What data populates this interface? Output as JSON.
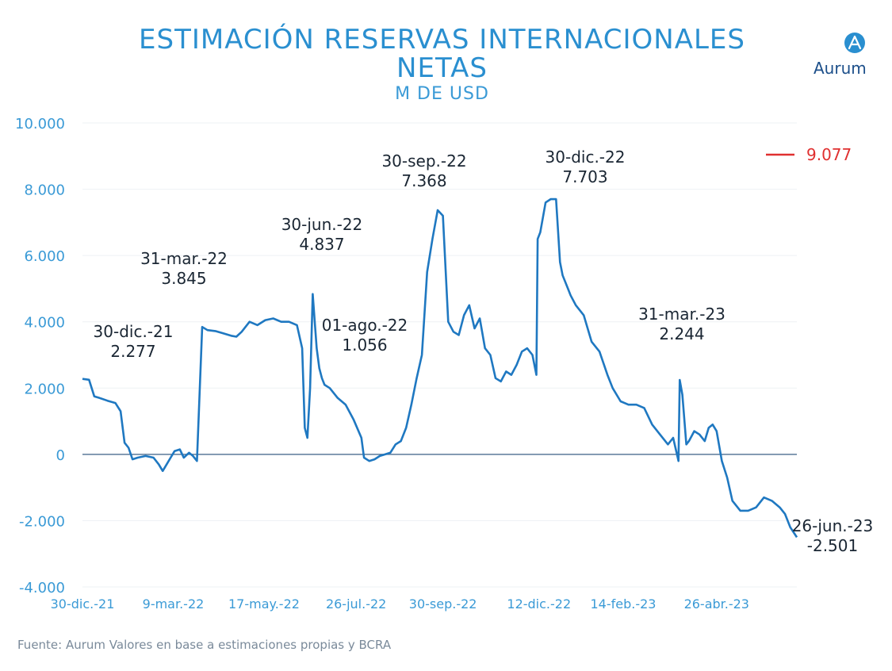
{
  "title_line1": "ESTIMACIÓN RESERVAS INTERNACIONALES",
  "title_line2": "NETAS",
  "subtitle": "M DE USD",
  "logo_text": "Aurum",
  "source": "Fuente: Aurum Valores en base a estimaciones propias y BCRA",
  "colors": {
    "line": "#1f78c1",
    "accent": "#e03030",
    "axis_text": "#3a9ad6",
    "zero": "#5b7a99"
  },
  "chart_data": {
    "type": "line",
    "ylim": [
      -4000,
      10000
    ],
    "yticks": [
      -4000,
      -2000,
      0,
      2000,
      4000,
      6000,
      8000,
      10000
    ],
    "ytick_labels": [
      "-4.000",
      "-2.000",
      "0",
      "2.000",
      "4.000",
      "6.000",
      "8.000",
      "10.000"
    ],
    "xlim": [
      "2021-12-30",
      "2023-06-26"
    ],
    "xticks": [
      "2021-12-30",
      "2022-03-09",
      "2022-05-17",
      "2022-07-26",
      "2022-09-30",
      "2022-12-12",
      "2023-02-14",
      "2023-04-26"
    ],
    "xtick_labels": [
      "30-dic.-21",
      "9-mar.-22",
      "17-may.-22",
      "26-jul.-22",
      "30-sep.-22",
      "12-dic.-22",
      "14-feb.-23",
      "26-abr.-23"
    ],
    "legend_value": "9.077",
    "annotations": [
      {
        "label": "30-dic.-21",
        "value": "2.277"
      },
      {
        "label": "31-mar.-22",
        "value": "3.845"
      },
      {
        "label": "30-jun.-22",
        "value": "4.837"
      },
      {
        "label": "01-ago.-22",
        "value": "1.056"
      },
      {
        "label": "30-sep.-22",
        "value": "7.368"
      },
      {
        "label": "30-dic.-22",
        "value": "7.703"
      },
      {
        "label": "31-mar.-23",
        "value": "2.244"
      },
      {
        "label": "26-jun.-23",
        "value": "-2.501"
      }
    ],
    "series": [
      {
        "x": [
          "2021-12-30",
          "2022-01-04",
          "2022-01-08",
          "2022-01-12",
          "2022-01-18",
          "2022-01-24",
          "2022-01-28",
          "2022-01-31",
          "2022-02-03",
          "2022-02-06",
          "2022-02-10",
          "2022-02-16",
          "2022-02-22",
          "2022-02-26",
          "2022-03-01",
          "2022-03-04",
          "2022-03-07",
          "2022-03-10",
          "2022-03-14",
          "2022-03-17",
          "2022-03-21",
          "2022-03-24",
          "2022-03-26",
          "2022-03-27",
          "2022-03-31",
          "2022-04-04",
          "2022-04-10",
          "2022-04-16",
          "2022-04-22",
          "2022-04-26",
          "2022-04-30",
          "2022-05-06",
          "2022-05-12",
          "2022-05-18",
          "2022-05-24",
          "2022-05-30",
          "2022-06-05",
          "2022-06-11",
          "2022-06-15",
          "2022-06-17",
          "2022-06-19",
          "2022-06-21",
          "2022-06-23",
          "2022-06-26",
          "2022-06-28",
          "2022-06-30",
          "2022-07-02",
          "2022-07-06",
          "2022-07-12",
          "2022-07-18",
          "2022-07-24",
          "2022-07-30",
          "2022-08-01",
          "2022-08-05",
          "2022-08-09",
          "2022-08-13",
          "2022-08-17",
          "2022-08-21",
          "2022-08-25",
          "2022-08-29",
          "2022-09-02",
          "2022-09-06",
          "2022-09-10",
          "2022-09-14",
          "2022-09-18",
          "2022-09-22",
          "2022-09-26",
          "2022-09-30",
          "2022-10-04",
          "2022-10-08",
          "2022-10-12",
          "2022-10-16",
          "2022-10-20",
          "2022-10-24",
          "2022-10-28",
          "2022-11-01",
          "2022-11-05",
          "2022-11-09",
          "2022-11-13",
          "2022-11-17",
          "2022-11-21",
          "2022-11-25",
          "2022-11-29",
          "2022-12-03",
          "2022-12-07",
          "2022-12-10",
          "2022-12-11",
          "2022-12-13",
          "2022-12-17",
          "2022-12-21",
          "2022-12-25",
          "2022-12-28",
          "2022-12-30",
          "2023-01-03",
          "2023-01-05",
          "2023-01-09",
          "2023-01-15",
          "2023-01-21",
          "2023-01-27",
          "2023-02-02",
          "2023-02-06",
          "2023-02-12",
          "2023-02-18",
          "2023-02-24",
          "2023-03-02",
          "2023-03-08",
          "2023-03-14",
          "2023-03-20",
          "2023-03-24",
          "2023-03-28",
          "2023-03-29",
          "2023-03-31",
          "2023-04-03",
          "2023-04-05",
          "2023-04-09",
          "2023-04-13",
          "2023-04-17",
          "2023-04-20",
          "2023-04-23",
          "2023-04-26",
          "2023-04-30",
          "2023-05-04",
          "2023-05-08",
          "2023-05-14",
          "2023-05-20",
          "2023-05-26",
          "2023-06-01",
          "2023-06-07",
          "2023-06-13",
          "2023-06-17",
          "2023-06-21",
          "2023-06-26"
        ],
        "y": [
          2277,
          2250,
          1750,
          1700,
          1620,
          1550,
          1300,
          350,
          200,
          -150,
          -100,
          -50,
          -100,
          -300,
          -500,
          -300,
          -100,
          100,
          150,
          -100,
          50,
          -50,
          -150,
          -200,
          3845,
          3750,
          3720,
          3650,
          3580,
          3550,
          3700,
          4000,
          3900,
          4050,
          4100,
          4000,
          4000,
          3900,
          3200,
          800,
          500,
          2000,
          4837,
          3200,
          2600,
          2300,
          2100,
          2000,
          1700,
          1500,
          1056,
          500,
          -100,
          -200,
          -150,
          -50,
          0,
          50,
          300,
          400,
          800,
          1500,
          2300,
          3000,
          5500,
          6500,
          7368,
          7200,
          4000,
          3700,
          3600,
          4200,
          4500,
          3800,
          4100,
          3200,
          3000,
          2300,
          2200,
          2500,
          2400,
          2700,
          3100,
          3200,
          3000,
          2400,
          6500,
          6700,
          7600,
          7703,
          7700,
          5800,
          5400,
          5000,
          4800,
          4500,
          4200,
          3400,
          3100,
          2400,
          2000,
          1600,
          1500,
          1500,
          1400,
          900,
          600,
          300,
          500,
          -200,
          2244,
          1800,
          300,
          400,
          700,
          600,
          400,
          800,
          900,
          700,
          -200,
          -700,
          -1400,
          -1700,
          -1700,
          -1600,
          -1300,
          -1400,
          -1600,
          -1800,
          -2200,
          -2501
        ]
      }
    ]
  }
}
